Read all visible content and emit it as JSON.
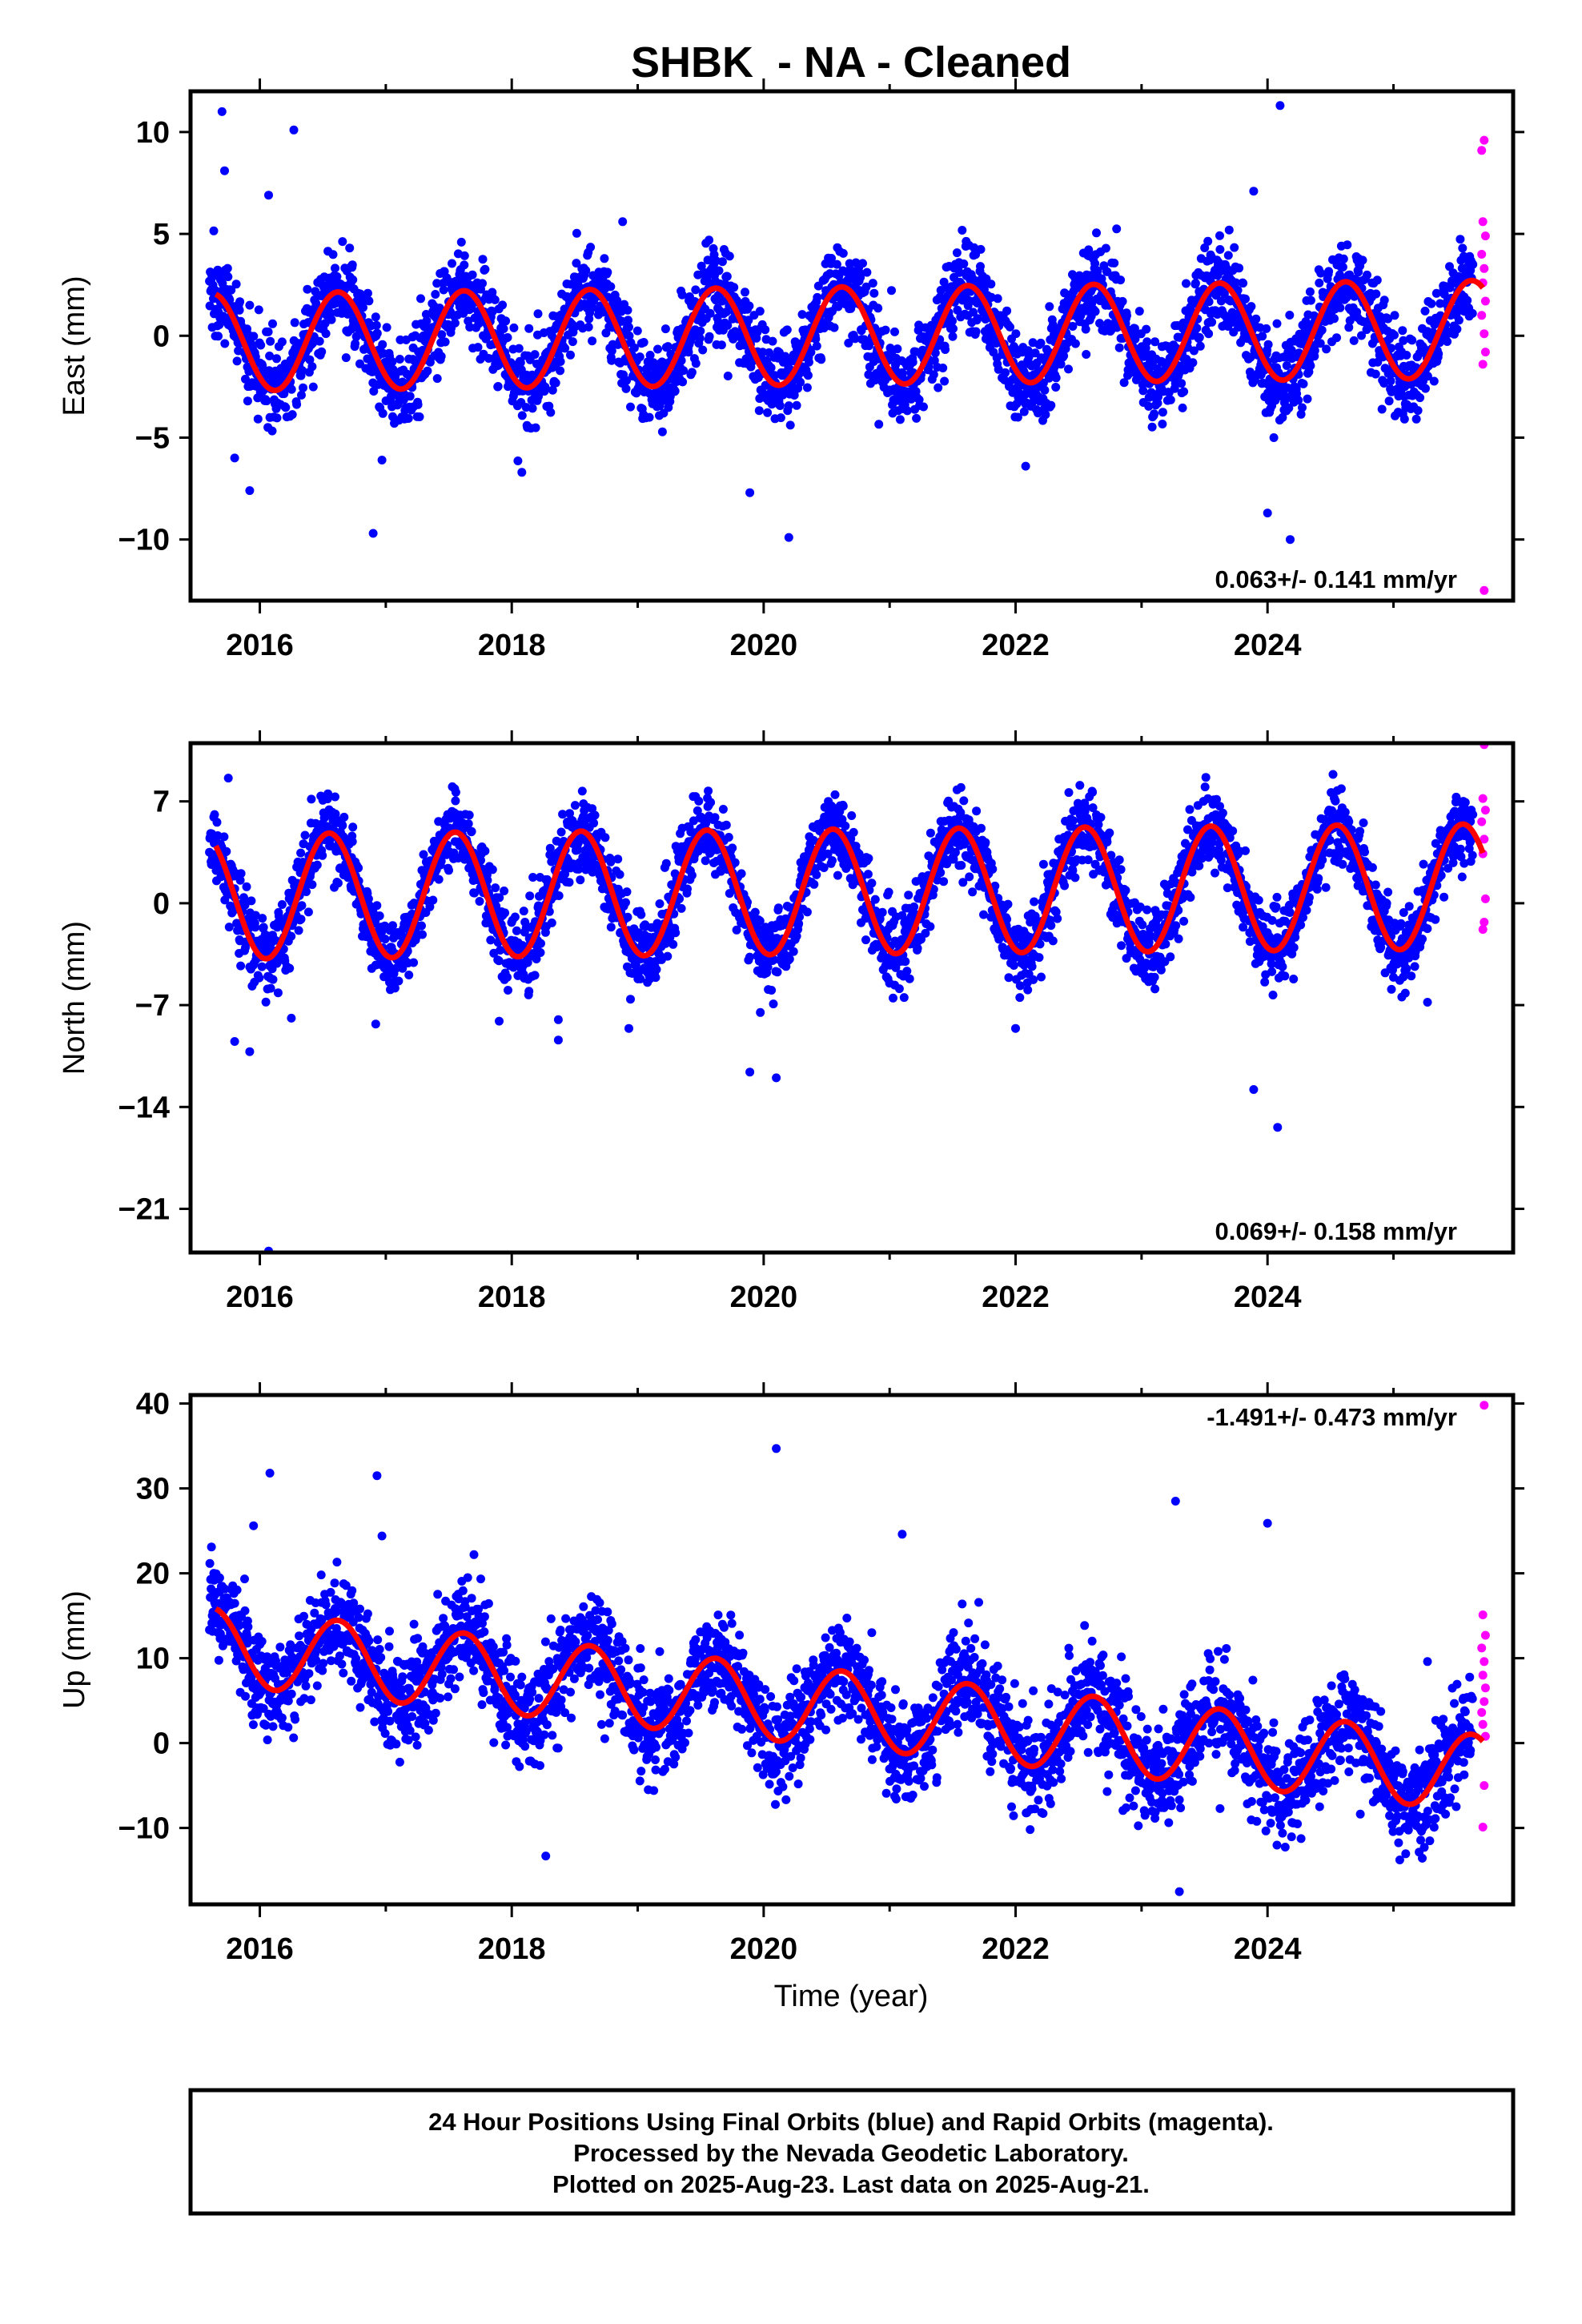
{
  "chart_data": {
    "type": "scatter",
    "title": "SHBK  - NA - Cleaned",
    "xlabel": "Time (year)",
    "xlim": [
      2015.45,
      2025.95
    ],
    "x_ticks": [
      2016,
      2018,
      2020,
      2022,
      2024
    ],
    "x_tick_labels": [
      "2016",
      "2018",
      "2020",
      "2022",
      "2024"
    ],
    "colors": {
      "final": "#0000ff",
      "rapid": "#ff00ff",
      "model": "#ff0000"
    },
    "panels": [
      {
        "id": "east",
        "ylabel": "East (mm)",
        "ylim": [
          -13,
          12
        ],
        "y_ticks": [
          -10,
          -5,
          0,
          5,
          10
        ],
        "y_tick_labels": [
          "−10",
          "−5",
          "0",
          "5",
          "10"
        ],
        "rate": "0.063+/- 0.141 mm/yr",
        "rate_position": "bottom-right",
        "model": {
          "trend": 0.063,
          "offset": 0.0,
          "amplitude": 2.4,
          "peak_phase": 0.62,
          "noise_sd": 1.1
        },
        "outliers": [
          [
            2015.7,
            11.0
          ],
          [
            2015.72,
            8.1
          ],
          [
            2016.27,
            10.1
          ],
          [
            2016.07,
            6.9
          ],
          [
            2015.8,
            -6.0
          ],
          [
            2015.92,
            -7.6
          ],
          [
            2016.9,
            -9.7
          ],
          [
            2016.97,
            -6.1
          ],
          [
            2018.88,
            5.6
          ],
          [
            2019.89,
            -7.7
          ],
          [
            2020.2,
            -9.9
          ],
          [
            2022.08,
            -6.4
          ],
          [
            2023.89,
            7.1
          ],
          [
            2024.1,
            11.3
          ],
          [
            2024.0,
            -8.7
          ],
          [
            2024.18,
            -10.0
          ],
          [
            2024.05,
            -5.0
          ]
        ],
        "rapid": [
          [
            2025.72,
            9.6
          ],
          [
            2025.7,
            9.1
          ],
          [
            2025.71,
            5.6
          ],
          [
            2025.73,
            4.9
          ],
          [
            2025.7,
            4.0
          ],
          [
            2025.72,
            3.3
          ],
          [
            2025.71,
            2.6
          ],
          [
            2025.73,
            1.7
          ],
          [
            2025.7,
            1.0
          ],
          [
            2025.72,
            0.1
          ],
          [
            2025.73,
            -0.8
          ],
          [
            2025.71,
            -1.4
          ],
          [
            2025.72,
            -12.5
          ]
        ]
      },
      {
        "id": "north",
        "ylabel": "North (mm)",
        "ylim": [
          -24,
          11
        ],
        "y_ticks": [
          -21,
          -14,
          -7,
          0,
          7
        ],
        "y_tick_labels": [
          "−21",
          "−14",
          "−7",
          "0",
          "7"
        ],
        "rate": "0.069+/- 0.158 mm/yr",
        "rate_position": "bottom-right",
        "model": {
          "trend": 0.069,
          "offset": 0.8,
          "amplitude": 4.3,
          "peak_phase": 0.55,
          "noise_sd": 1.3
        },
        "outliers": [
          [
            2015.75,
            8.6
          ],
          [
            2015.8,
            -9.5
          ],
          [
            2015.92,
            -10.2
          ],
          [
            2016.07,
            -23.9
          ],
          [
            2016.25,
            -7.9
          ],
          [
            2016.92,
            -8.3
          ],
          [
            2017.9,
            -8.1
          ],
          [
            2018.37,
            -9.4
          ],
          [
            2018.37,
            -8.0
          ],
          [
            2018.93,
            -8.6
          ],
          [
            2019.89,
            -11.6
          ],
          [
            2020.1,
            -12.0
          ],
          [
            2022.0,
            -8.6
          ],
          [
            2023.89,
            -12.8
          ],
          [
            2024.08,
            -15.4
          ],
          [
            2025.27,
            -6.8
          ]
        ],
        "rapid": [
          [
            2025.72,
            10.9
          ],
          [
            2025.71,
            7.2
          ],
          [
            2025.73,
            6.4
          ],
          [
            2025.7,
            5.6
          ],
          [
            2025.72,
            4.4
          ],
          [
            2025.71,
            3.4
          ],
          [
            2025.73,
            0.3
          ],
          [
            2025.72,
            -1.3
          ],
          [
            2025.71,
            -1.8
          ]
        ]
      },
      {
        "id": "up",
        "ylabel": "Up (mm)",
        "ylim": [
          -19,
          41
        ],
        "y_ticks": [
          -10,
          0,
          10,
          20,
          30,
          40
        ],
        "y_tick_labels": [
          "−10",
          "0",
          "10",
          "20",
          "30",
          "40"
        ],
        "rate": "-1.491+/- 0.473 mm/yr",
        "rate_position": "top-right",
        "model": {
          "trend": -1.491,
          "offset": 4.0,
          "amplitude": 4.5,
          "peak_phase": 0.62,
          "noise_sd": 3.0
        },
        "outliers": [
          [
            2016.08,
            31.8
          ],
          [
            2015.95,
            25.6
          ],
          [
            2016.93,
            31.5
          ],
          [
            2016.97,
            24.4
          ],
          [
            2017.7,
            22.2
          ],
          [
            2020.1,
            34.7
          ],
          [
            2021.1,
            24.6
          ],
          [
            2023.27,
            28.5
          ],
          [
            2024.0,
            25.9
          ],
          [
            2025.27,
            9.6
          ],
          [
            2018.27,
            -13.3
          ],
          [
            2023.3,
            -17.5
          ]
        ],
        "rapid": [
          [
            2025.72,
            39.8
          ],
          [
            2025.71,
            15.1
          ],
          [
            2025.73,
            12.7
          ],
          [
            2025.7,
            11.2
          ],
          [
            2025.72,
            9.6
          ],
          [
            2025.71,
            8.0
          ],
          [
            2025.73,
            6.5
          ],
          [
            2025.72,
            4.9
          ],
          [
            2025.7,
            3.6
          ],
          [
            2025.71,
            2.2
          ],
          [
            2025.73,
            0.8
          ],
          [
            2025.72,
            -5.0
          ],
          [
            2025.71,
            -9.9
          ]
        ]
      }
    ],
    "legend_text": [
      "24 Hour Positions Using Final Orbits (blue) and Rapid Orbits (magenta).",
      "Processed by the Nevada Geodetic Laboratory.",
      "Plotted on 2025-Aug-23. Last data on 2025-Aug-21."
    ]
  }
}
